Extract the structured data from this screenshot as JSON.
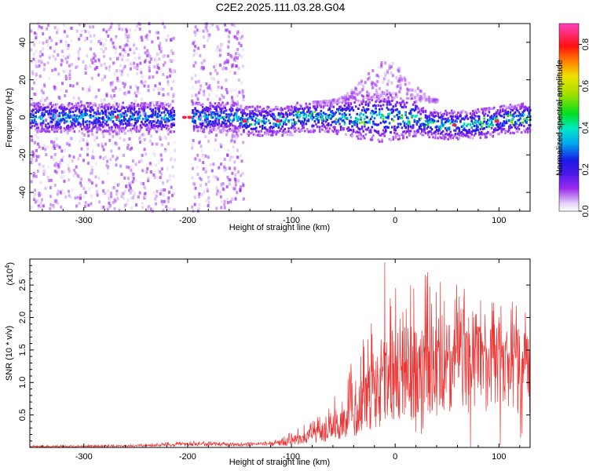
{
  "title": "C2E2.2025.111.03.28.G04",
  "chart_data": [
    {
      "type": "heatmap",
      "name": "spectrogram",
      "xlabel": "Height of straight line (km)",
      "ylabel": "Frequency (Hz)",
      "xlim": [
        -352,
        130
      ],
      "ylim": [
        -50,
        50
      ],
      "xticks": [
        -300,
        -200,
        -100,
        0,
        100
      ],
      "yticks": [
        -40,
        -20,
        0,
        20,
        40
      ],
      "colorbar": {
        "label": "Normalized spectral amplitude",
        "range": [
          0.0,
          0.9
        ],
        "ticks": [
          0.0,
          0.2,
          0.4,
          0.6,
          0.8
        ]
      },
      "energy_band": {
        "center_hz": 0,
        "typical_halfwidth_hz": 6,
        "bright_spots_km": [
          -268,
          -203,
          -198,
          -145,
          -113,
          57,
          98
        ]
      },
      "data_gaps_km": [
        [
          -213,
          -197
        ]
      ],
      "diffuse_noise_range_km": [
        -352,
        -147
      ]
    },
    {
      "type": "line",
      "name": "snr",
      "xlabel": "Height of straight line (km)",
      "ylabel": "SNR (10 * v/v)",
      "multiplier": "(x10^4)",
      "multiplier_base": "(x10",
      "multiplier_exp": "4",
      "multiplier_close": ")",
      "xlim": [
        -352,
        130
      ],
      "ylim": [
        0,
        2.9
      ],
      "xticks": [
        -300,
        -200,
        -100,
        0,
        100
      ],
      "yticks": [
        0.5,
        1.0,
        1.5,
        2.0,
        2.5
      ],
      "series_color": "#ee3333",
      "envelope": {
        "x": [
          -352,
          -250,
          -200,
          -150,
          -120,
          -100,
          -80,
          -60,
          -40,
          -20,
          0,
          20,
          40,
          60,
          80,
          100,
          130
        ],
        "baseline": [
          0.01,
          0.02,
          0.05,
          0.04,
          0.05,
          0.08,
          0.15,
          0.25,
          0.4,
          0.6,
          0.9,
          1.1,
          1.2,
          1.3,
          1.35,
          1.3,
          1.2
        ],
        "peak": [
          0.03,
          0.05,
          0.1,
          0.08,
          0.1,
          0.25,
          0.45,
          0.8,
          1.4,
          2.0,
          2.6,
          2.7,
          2.7,
          2.5,
          2.4,
          2.3,
          2.2
        ]
      },
      "max_spike": {
        "x": -10,
        "y": 2.85
      }
    }
  ]
}
